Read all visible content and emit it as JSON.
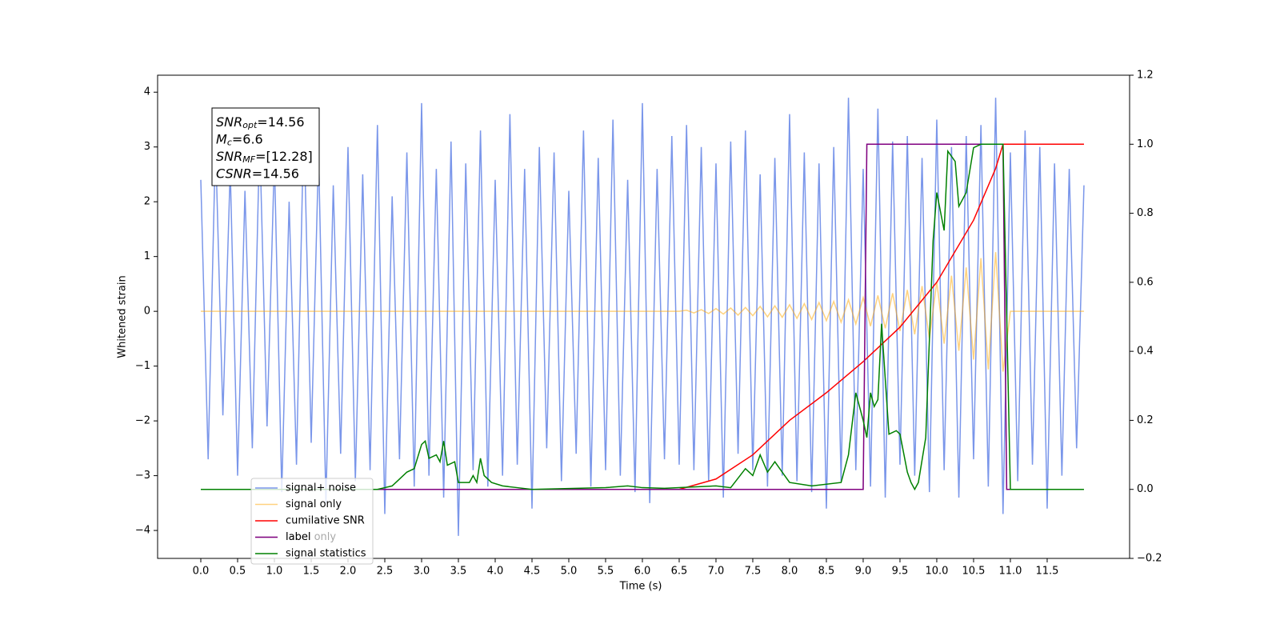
{
  "chart_data": {
    "type": "line",
    "xlabel": "Time (s)",
    "ylabel": "Whitened strain",
    "xlim": [
      -0.587,
      12.62
    ],
    "ylim": [
      -4.51,
      4.31
    ],
    "y2lim": [
      -0.2,
      1.2
    ],
    "xticks": [
      {
        "value": 0,
        "label": "0.0"
      },
      {
        "value": 0.5,
        "label": "0.5"
      },
      {
        "value": 1,
        "label": "1.0"
      },
      {
        "value": 1.5,
        "label": "1.5"
      },
      {
        "value": 2,
        "label": "2.0"
      },
      {
        "value": 2.5,
        "label": "2.5"
      },
      {
        "value": 3,
        "label": "3.0"
      },
      {
        "value": 3.5,
        "label": "3.5"
      },
      {
        "value": 4,
        "label": "4.0"
      },
      {
        "value": 4.5,
        "label": "4.5"
      },
      {
        "value": 5,
        "label": "5.0"
      },
      {
        "value": 5.5,
        "label": "5.5"
      },
      {
        "value": 6,
        "label": "6.0"
      },
      {
        "value": 6.5,
        "label": "6.5"
      },
      {
        "value": 7,
        "label": "7.0"
      },
      {
        "value": 7.5,
        "label": "7.5"
      },
      {
        "value": 8,
        "label": "8.0"
      },
      {
        "value": 8.5,
        "label": "8.5"
      },
      {
        "value": 9,
        "label": "9.0"
      },
      {
        "value": 9.5,
        "label": "9.5"
      },
      {
        "value": 10,
        "label": "10.0"
      },
      {
        "value": 10.5,
        "label": "10.5"
      },
      {
        "value": 11,
        "label": "11.0"
      },
      {
        "value": 11.5,
        "label": "11.5"
      }
    ],
    "yticks": [
      {
        "value": -4,
        "label": "−4"
      },
      {
        "value": -3,
        "label": "−3"
      },
      {
        "value": -2,
        "label": "−2"
      },
      {
        "value": -1,
        "label": "−1"
      },
      0,
      1,
      2,
      3,
      4
    ],
    "y2ticks": [
      {
        "value": -0.2,
        "label": "−0.2"
      },
      {
        "value": 0,
        "label": "0.0"
      },
      {
        "value": 0.2,
        "label": "0.2"
      },
      {
        "value": 0.4,
        "label": "0.4"
      },
      {
        "value": 0.6,
        "label": "0.6"
      },
      {
        "value": 0.8,
        "label": "0.8"
      },
      {
        "value": 1,
        "label": "1.0"
      },
      {
        "value": 1.2,
        "label": "1.2"
      }
    ],
    "annotation": [
      {
        "main": "SNR",
        "sub": "opt",
        "rest": "=14.56"
      },
      {
        "main": "M",
        "sub": "c",
        "rest": "=6.6"
      },
      {
        "main": "SNR",
        "sub": "MF",
        "rest": "=[12.28]"
      },
      {
        "main": "CSNR",
        "rest": "=14.56"
      }
    ],
    "legend": "lower left",
    "series": [
      {
        "name": "signal+ noise",
        "color": "#4169e1",
        "opacity": 0.7,
        "x": [
          0,
          0.1,
          0.2,
          0.3,
          0.4,
          0.5,
          0.6,
          0.7,
          0.8,
          0.9,
          1,
          1.1,
          1.2,
          1.3,
          1.4,
          1.5,
          1.6,
          1.7,
          1.8,
          1.9,
          2,
          2.1,
          2.2,
          2.3,
          2.4,
          2.5,
          2.6,
          2.7,
          2.8,
          2.9,
          3,
          3.1,
          3.2,
          3.3,
          3.4,
          3.5,
          3.6,
          3.7,
          3.8,
          3.9,
          4,
          4.1,
          4.2,
          4.3,
          4.4,
          4.5,
          4.6,
          4.7,
          4.8,
          4.9,
          5,
          5.1,
          5.2,
          5.3,
          5.4,
          5.5,
          5.6,
          5.7,
          5.8,
          5.9,
          6,
          6.1,
          6.2,
          6.3,
          6.4,
          6.5,
          6.6,
          6.7,
          6.8,
          6.9,
          7,
          7.1,
          7.2,
          7.3,
          7.4,
          7.5,
          7.6,
          7.7,
          7.8,
          7.9,
          8,
          8.1,
          8.2,
          8.3,
          8.4,
          8.5,
          8.6,
          8.7,
          8.8,
          8.9,
          9,
          9.1,
          9.2,
          9.3,
          9.4,
          9.5,
          9.6,
          9.7,
          9.8,
          9.9,
          10,
          10.1,
          10.2,
          10.3,
          10.4,
          10.5,
          10.6,
          10.7,
          10.8,
          10.9,
          11,
          11.1,
          11.2,
          11.3,
          11.4,
          11.5,
          11.6,
          11.7,
          11.8,
          11.9,
          12
        ],
        "values": [
          2.4,
          -2.7,
          3.1,
          -1.9,
          2.6,
          -3.0,
          2.2,
          -2.5,
          3.2,
          -2.1,
          2.8,
          -3.3,
          2.0,
          -2.8,
          3.5,
          -2.4,
          2.9,
          -3.5,
          2.3,
          -2.6,
          3.0,
          -3.1,
          2.5,
          -2.9,
          3.4,
          -3.7,
          2.1,
          -2.7,
          2.9,
          -3.2,
          3.8,
          -3.0,
          2.6,
          -3.4,
          3.1,
          -4.1,
          2.7,
          -2.9,
          3.3,
          -3.2,
          2.4,
          -3.0,
          3.6,
          -2.8,
          2.6,
          -3.6,
          3.0,
          -2.5,
          2.9,
          -3.1,
          2.2,
          -2.6,
          3.3,
          -3.2,
          2.8,
          -2.9,
          3.5,
          -3.0,
          2.4,
          -3.3,
          3.8,
          -3.5,
          2.6,
          -2.7,
          3.2,
          -2.8,
          3.4,
          -2.9,
          3.0,
          -3.1,
          2.7,
          -3.4,
          3.1,
          -2.6,
          3.3,
          -2.9,
          2.5,
          -3.2,
          2.8,
          -3.0,
          3.6,
          -3.1,
          2.9,
          -3.3,
          2.7,
          -3.6,
          3.0,
          -3.1,
          3.9,
          -2.9,
          2.6,
          -3.2,
          3.7,
          -3.4,
          3.1,
          -2.8,
          3.2,
          -3.0,
          2.8,
          -3.3,
          3.5,
          -2.9,
          3.0,
          -3.4,
          3.2,
          -2.7,
          3.4,
          -3.2,
          3.9,
          -3.7,
          2.9,
          -3.1,
          3.3,
          -2.8,
          3.0,
          -3.6,
          2.7,
          -3.0,
          2.6,
          -2.5,
          2.3
        ]
      },
      {
        "name": "signal only",
        "color": "#ffa500",
        "opacity": 0.5,
        "x": [
          0,
          6.5,
          6.6,
          6.7,
          6.8,
          6.9,
          7,
          7.1,
          7.2,
          7.3,
          7.4,
          7.5,
          7.6,
          7.7,
          7.8,
          7.9,
          8,
          8.1,
          8.2,
          8.3,
          8.4,
          8.5,
          8.6,
          8.7,
          8.8,
          8.9,
          9,
          9.1,
          9.2,
          9.3,
          9.4,
          9.5,
          9.6,
          9.7,
          9.8,
          9.9,
          10,
          10.1,
          10.2,
          10.3,
          10.4,
          10.5,
          10.6,
          10.7,
          10.8,
          10.9,
          11,
          12
        ],
        "values": [
          0,
          0,
          0.02,
          -0.03,
          0.03,
          -0.04,
          0.05,
          -0.05,
          0.06,
          -0.07,
          0.07,
          -0.08,
          0.09,
          -0.1,
          0.1,
          -0.11,
          0.12,
          -0.13,
          0.14,
          -0.15,
          0.16,
          -0.17,
          0.18,
          -0.2,
          0.21,
          -0.23,
          0.25,
          -0.27,
          0.29,
          -0.31,
          0.33,
          -0.36,
          0.39,
          -0.42,
          0.46,
          -0.5,
          0.54,
          -0.59,
          0.65,
          -0.72,
          0.8,
          -0.88,
          0.97,
          -1.06,
          1.08,
          -1.1,
          0,
          0
        ]
      },
      {
        "name": "cumilative SNR",
        "color": "#ff0000",
        "axis": "y2",
        "x": [
          0,
          6.5,
          7,
          7.5,
          8,
          8.5,
          9,
          9.5,
          10,
          10.5,
          10.8,
          10.9,
          12
        ],
        "values": [
          0,
          0,
          0.03,
          0.1,
          0.2,
          0.28,
          0.37,
          0.47,
          0.6,
          0.78,
          0.93,
          1,
          1
        ]
      },
      {
        "name": "label only",
        "color": "#d8d8d8",
        "axis": "y2",
        "x": [
          0,
          9,
          9.05,
          10.9,
          10.95,
          11
        ],
        "values": [
          0,
          0,
          1,
          1,
          0,
          0
        ]
      },
      {
        "name": "label",
        "color": "#800080",
        "axis": "y2",
        "x": [
          0,
          9,
          9.05,
          10.9,
          10.95,
          11
        ],
        "values": [
          0,
          0,
          1,
          1,
          0,
          0
        ]
      },
      {
        "name": "signal statistics",
        "color": "#008000",
        "axis": "y2",
        "x": [
          0,
          2.4,
          2.5,
          2.6,
          2.7,
          2.8,
          2.9,
          3,
          3.05,
          3.1,
          3.2,
          3.25,
          3.3,
          3.35,
          3.45,
          3.5,
          3.65,
          3.7,
          3.75,
          3.8,
          3.85,
          3.95,
          4.1,
          4.3,
          4.5,
          5.5,
          5.8,
          6,
          6.3,
          6.5,
          7,
          7.2,
          7.4,
          7.5,
          7.6,
          7.7,
          7.8,
          7.9,
          8,
          8.3,
          8.7,
          8.8,
          8.9,
          9,
          9.05,
          9.1,
          9.15,
          9.2,
          9.25,
          9.35,
          9.45,
          9.5,
          9.6,
          9.65,
          9.7,
          9.75,
          9.85,
          9.95,
          10,
          10.1,
          10.15,
          10.25,
          10.3,
          10.4,
          10.5,
          10.6,
          10.9,
          10.95,
          11,
          11.05,
          11.2,
          12
        ],
        "values": [
          0,
          0,
          0.005,
          0.01,
          0.03,
          0.05,
          0.06,
          0.13,
          0.14,
          0.09,
          0.1,
          0.08,
          0.14,
          0.07,
          0.08,
          0.02,
          0.02,
          0.04,
          0.02,
          0.09,
          0.04,
          0.02,
          0.01,
          0.005,
          0,
          0.005,
          0.01,
          0.005,
          0.003,
          0.005,
          0.01,
          0.005,
          0.06,
          0.04,
          0.1,
          0.05,
          0.08,
          0.05,
          0.02,
          0.01,
          0.02,
          0.1,
          0.28,
          0.2,
          0.15,
          0.28,
          0.24,
          0.26,
          0.48,
          0.16,
          0.17,
          0.16,
          0.05,
          0.02,
          0,
          0.02,
          0.15,
          0.72,
          0.86,
          0.75,
          0.98,
          0.95,
          0.82,
          0.86,
          0.99,
          1,
          1,
          0.5,
          0,
          0,
          0,
          0
        ]
      }
    ]
  }
}
